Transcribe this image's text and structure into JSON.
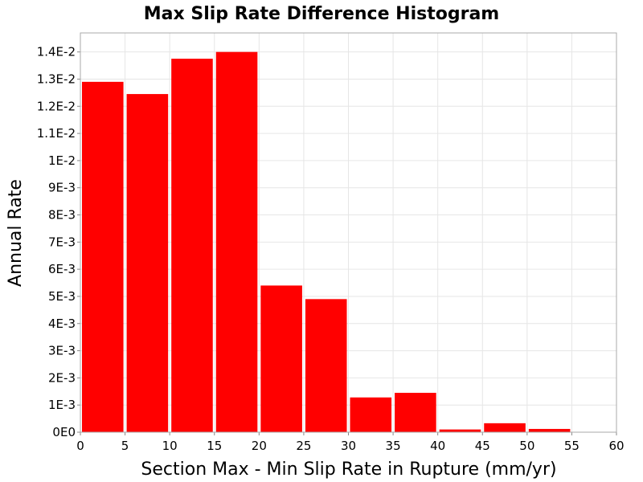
{
  "chart_data": {
    "type": "bar",
    "title": "Max Slip Rate Difference Histogram",
    "xlabel": "Section Max - Min Slip Rate in Rupture (mm/yr)",
    "ylabel": "Annual Rate",
    "bin_width": 5,
    "xlim": [
      0,
      60
    ],
    "ylim": [
      0,
      0.0147
    ],
    "x_ticks": [
      0,
      5,
      10,
      15,
      20,
      25,
      30,
      35,
      40,
      45,
      50,
      55,
      60
    ],
    "x_tick_labels": [
      "0",
      "5",
      "10",
      "15",
      "20",
      "25",
      "30",
      "35",
      "40",
      "45",
      "50",
      "55",
      "60"
    ],
    "y_ticks": [
      0,
      0.001,
      0.002,
      0.003,
      0.004,
      0.005,
      0.006,
      0.007,
      0.008,
      0.009,
      0.01,
      0.011,
      0.012,
      0.013,
      0.014
    ],
    "y_tick_labels": [
      "0E0",
      "1E-3",
      "2E-3",
      "3E-3",
      "4E-3",
      "5E-3",
      "6E-3",
      "7E-3",
      "8E-3",
      "9E-3",
      "1E-2",
      "1.1E-2",
      "1.2E-2",
      "1.3E-2",
      "1.4E-2"
    ],
    "bins": [
      {
        "x_start": 0,
        "value": 0.0129
      },
      {
        "x_start": 5,
        "value": 0.01245
      },
      {
        "x_start": 10,
        "value": 0.01375
      },
      {
        "x_start": 15,
        "value": 0.014
      },
      {
        "x_start": 20,
        "value": 0.0054
      },
      {
        "x_start": 25,
        "value": 0.0049
      },
      {
        "x_start": 30,
        "value": 0.00128
      },
      {
        "x_start": 35,
        "value": 0.00145
      },
      {
        "x_start": 40,
        "value": 0.0001
      },
      {
        "x_start": 45,
        "value": 0.00033
      },
      {
        "x_start": 50,
        "value": 0.00012
      },
      {
        "x_start": 55,
        "value": 0.0
      }
    ],
    "bar_color": "#ff0000",
    "grid": true,
    "legend": "none"
  }
}
